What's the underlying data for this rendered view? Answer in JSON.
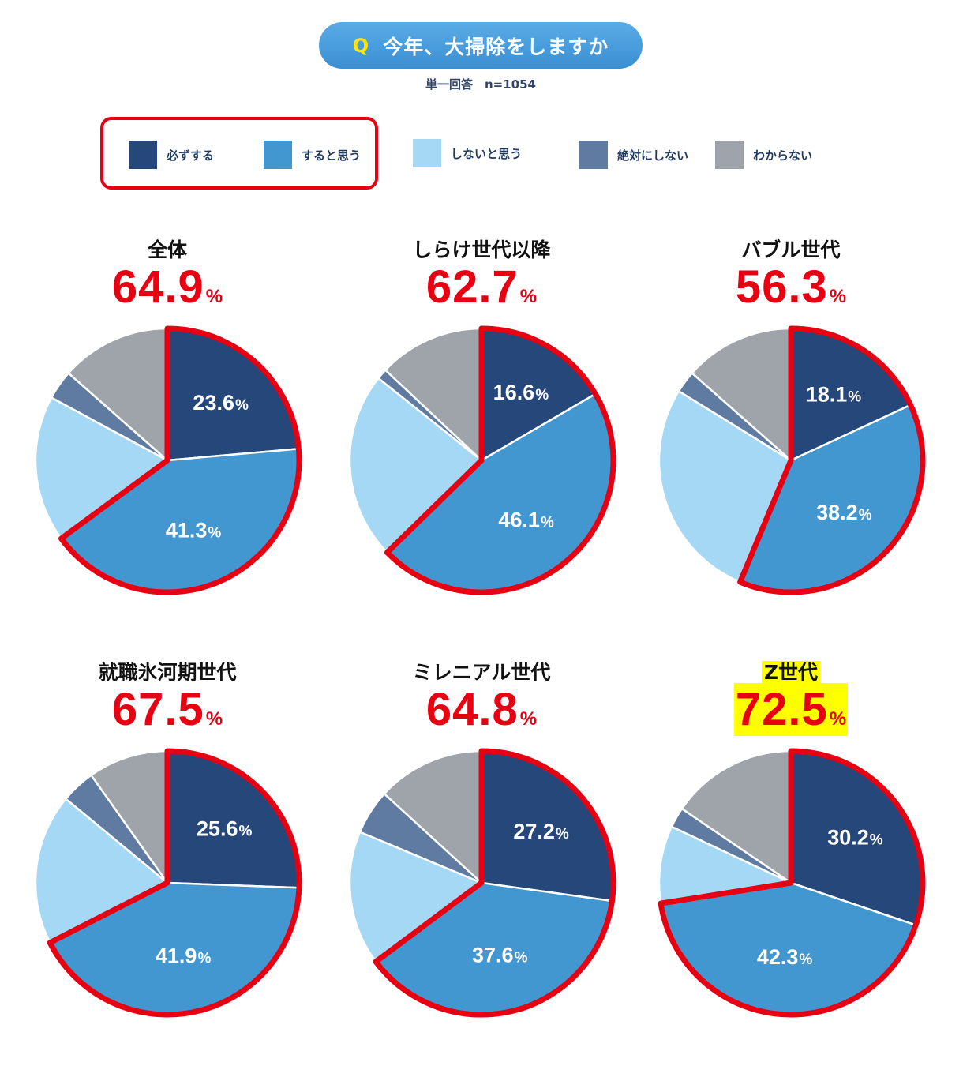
{
  "header": {
    "q_mark": "Q",
    "question": "今年、大掃除をしますか",
    "subtitle": "単一回答　n=1054"
  },
  "legend": [
    {
      "label": "必ずする",
      "color": "#26477a"
    },
    {
      "label": "すると思う",
      "color": "#4297d1"
    },
    {
      "label": "しないと思う",
      "color": "#a5d8f4"
    },
    {
      "label": "絶対にしない",
      "color": "#5f7ba1"
    },
    {
      "label": "わからない",
      "color": "#9fa4ab"
    }
  ],
  "colors": {
    "highlight_outline": "#e60012",
    "total_text": "#e60012",
    "z_highlight": "#ffff00"
  },
  "chart_data": [
    {
      "type": "pie",
      "title": "全体",
      "total": "64.9",
      "unit": "%",
      "categories": [
        "必ずする",
        "すると思う",
        "しないと思う",
        "絶対にしない",
        "わからない"
      ],
      "values": [
        23.6,
        41.3,
        18.0,
        3.6,
        13.5
      ],
      "labels": [
        "23.6",
        "41.3"
      ]
    },
    {
      "type": "pie",
      "title": "しらけ世代以降",
      "total": "62.7",
      "unit": "%",
      "categories": [
        "必ずする",
        "すると思う",
        "しないと思う",
        "絶対にしない",
        "わからない"
      ],
      "values": [
        16.6,
        46.1,
        23.0,
        1.3,
        13.0
      ],
      "labels": [
        "16.6",
        "46.1"
      ]
    },
    {
      "type": "pie",
      "title": "バブル世代",
      "total": "56.3",
      "unit": "%",
      "categories": [
        "必ずする",
        "すると思う",
        "しないと思う",
        "絶対にしない",
        "わからない"
      ],
      "values": [
        18.1,
        38.2,
        27.5,
        2.7,
        13.5
      ],
      "labels": [
        "18.1",
        "38.2"
      ]
    },
    {
      "type": "pie",
      "title": "就職氷河期世代",
      "total": "67.5",
      "unit": "%",
      "categories": [
        "必ずする",
        "すると思う",
        "しないと思う",
        "絶対にしない",
        "わからない"
      ],
      "values": [
        25.6,
        41.9,
        18.5,
        4.2,
        9.8
      ],
      "labels": [
        "25.6",
        "41.9"
      ]
    },
    {
      "type": "pie",
      "title": "ミレニアル世代",
      "total": "64.8",
      "unit": "%",
      "categories": [
        "必ずする",
        "すると思う",
        "しないと思う",
        "絶対にしない",
        "わからない"
      ],
      "values": [
        27.2,
        37.6,
        16.5,
        5.5,
        13.2
      ],
      "labels": [
        "27.2",
        "37.6"
      ]
    },
    {
      "type": "pie",
      "title": "Z世代",
      "total": "72.5",
      "unit": "%",
      "categories": [
        "必ずする",
        "すると思う",
        "しないと思う",
        "絶対にしない",
        "わからない"
      ],
      "values": [
        30.2,
        42.3,
        9.5,
        2.5,
        15.5
      ],
      "labels": [
        "30.2",
        "42.3"
      ]
    }
  ]
}
